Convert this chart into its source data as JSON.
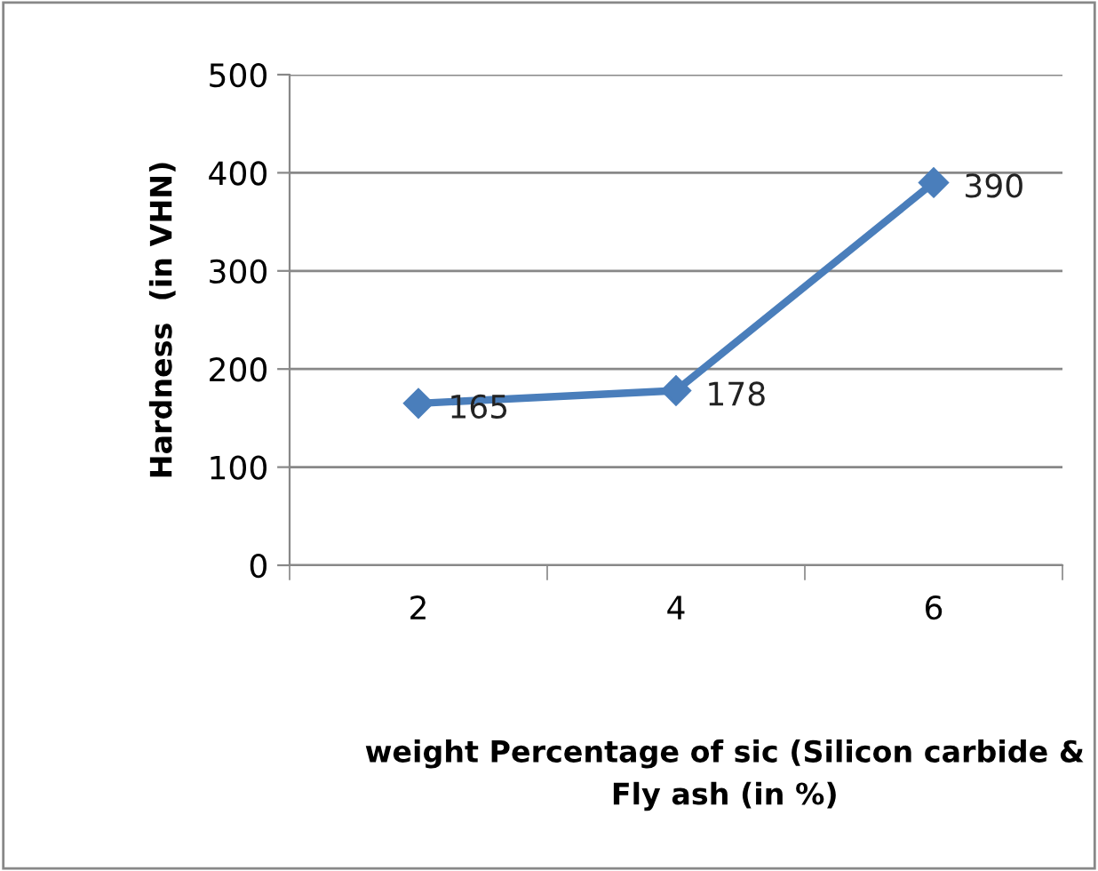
{
  "chart_data": {
    "type": "line",
    "categories": [
      "2",
      "4",
      "6"
    ],
    "series": [
      {
        "color": "#4a7ebb",
        "values": [
          165,
          178,
          390
        ]
      }
    ],
    "xlabel": "weight Percentage of sic (Silicon carbide & Fly ash (in %)",
    "ylabel": "Hardness  (in VHN)",
    "ylim": [
      0,
      500
    ],
    "yticks": [
      0,
      100,
      200,
      300,
      400,
      500
    ],
    "grid": "y",
    "marker": "diamond",
    "line_style": "solid",
    "data_labels": true,
    "legend": false
  }
}
